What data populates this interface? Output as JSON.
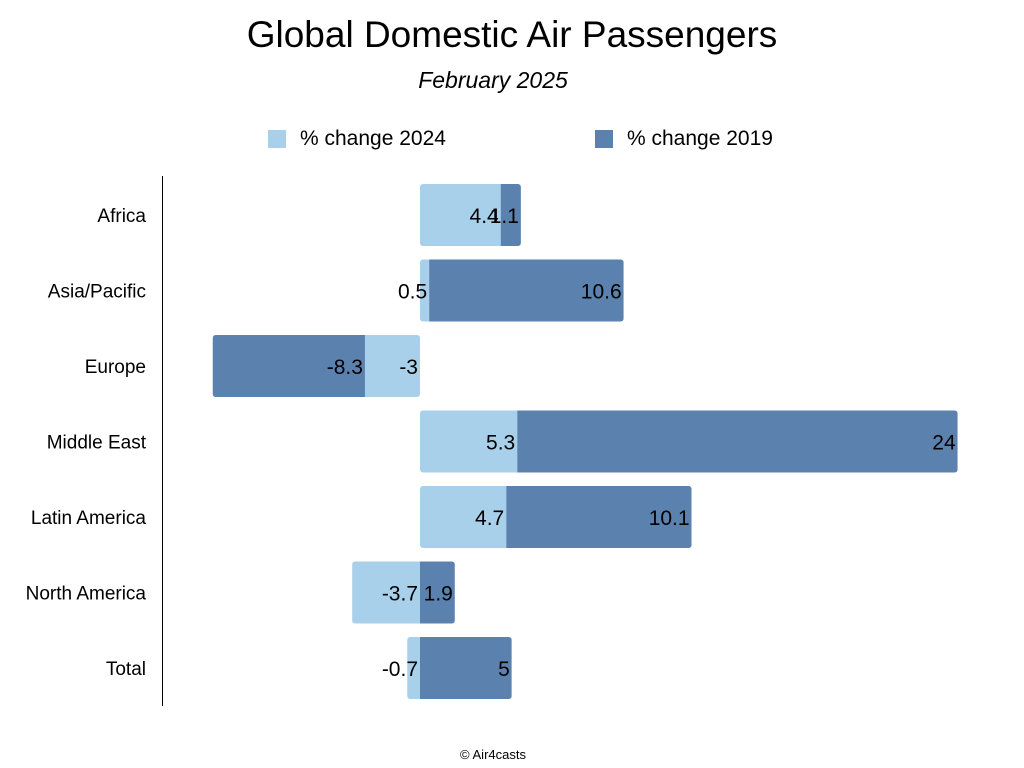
{
  "chart_data": {
    "type": "bar",
    "orientation": "horizontal",
    "stacked": true,
    "title": "Global Domestic Air Passengers",
    "subtitle": "February 2025",
    "categories": [
      "Africa",
      "Asia/Pacific",
      "Europe",
      "Middle East",
      "Latin America",
      "North America",
      "Total"
    ],
    "series": [
      {
        "name": "% change 2024",
        "color": "#A8D0EA",
        "values": [
          4.4,
          0.5,
          -3,
          5.3,
          4.7,
          -3.7,
          -0.7
        ]
      },
      {
        "name": "% change 2019",
        "color": "#5B82AE",
        "values": [
          1.1,
          10.6,
          -8.3,
          24,
          10.1,
          1.9,
          5
        ]
      }
    ],
    "xlim": [
      -11.3,
      29.5
    ],
    "xlabel": "",
    "ylabel": "",
    "grid": false,
    "legend": "top-center",
    "data_labels": true
  },
  "footer": "© Air4casts"
}
